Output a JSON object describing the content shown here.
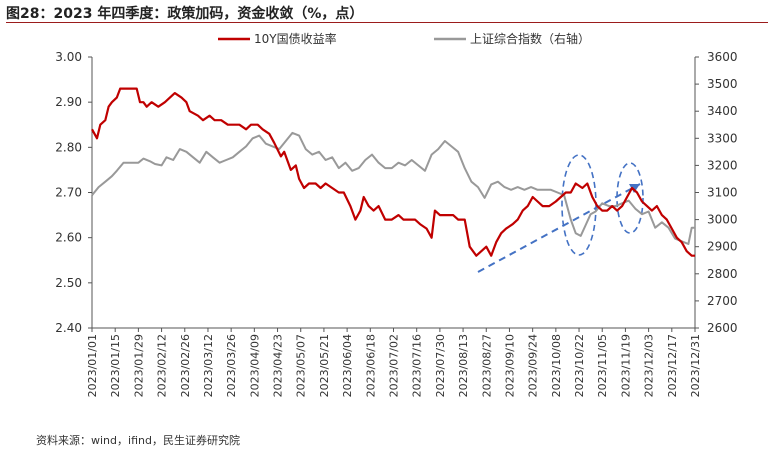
{
  "title": "图28：2023 年四季度：政策加码，资金收敛（%，点）",
  "source": "资料来源：wind，ifind，民生证券研究院",
  "chart_data": {
    "type": "line",
    "legend_placement": "top-center",
    "grid": false,
    "x_start": "2023/01/01",
    "x_end": "2023/12/31",
    "x_ticks": [
      "2023/01/01",
      "2023/01/15",
      "2023/01/29",
      "2023/02/12",
      "2023/02/26",
      "2023/03/12",
      "2023/03/26",
      "2023/04/09",
      "2023/04/23",
      "2023/05/07",
      "2023/05/21",
      "2023/06/04",
      "2023/06/18",
      "2023/07/02",
      "2023/07/16",
      "2023/07/30",
      "2023/08/13",
      "2023/08/27",
      "2023/09/10",
      "2023/09/24",
      "2023/10/08",
      "2023/10/22",
      "2023/11/05",
      "2023/11/19",
      "2023/12/03",
      "2023/12/17",
      "2023/12/31"
    ],
    "y_left": {
      "min": 2.4,
      "max": 3.0,
      "ticks": [
        "2.40",
        "2.50",
        "2.60",
        "2.70",
        "2.80",
        "2.90",
        "3.00"
      ]
    },
    "y_right": {
      "min": 2600,
      "max": 3600,
      "ticks": [
        "2600",
        "2700",
        "2800",
        "2900",
        "3000",
        "3100",
        "3200",
        "3300",
        "3400",
        "3500",
        "3600"
      ]
    },
    "series": [
      {
        "name": "10Y国债收益率",
        "axis": "left",
        "color": "#c00000",
        "points": [
          [
            "2023/01/01",
            2.84
          ],
          [
            "2023/01/04",
            2.82
          ],
          [
            "2023/01/06",
            2.85
          ],
          [
            "2023/01/09",
            2.86
          ],
          [
            "2023/01/11",
            2.89
          ],
          [
            "2023/01/13",
            2.9
          ],
          [
            "2023/01/16",
            2.91
          ],
          [
            "2023/01/18",
            2.93
          ],
          [
            "2023/01/28",
            2.93
          ],
          [
            "2023/01/30",
            2.9
          ],
          [
            "2023/02/01",
            2.9
          ],
          [
            "2023/02/03",
            2.89
          ],
          [
            "2023/02/06",
            2.9
          ],
          [
            "2023/02/10",
            2.89
          ],
          [
            "2023/02/14",
            2.9
          ],
          [
            "2023/02/17",
            2.91
          ],
          [
            "2023/02/20",
            2.92
          ],
          [
            "2023/02/24",
            2.91
          ],
          [
            "2023/02/27",
            2.9
          ],
          [
            "2023/03/01",
            2.88
          ],
          [
            "2023/03/06",
            2.87
          ],
          [
            "2023/03/09",
            2.86
          ],
          [
            "2023/03/13",
            2.87
          ],
          [
            "2023/03/16",
            2.86
          ],
          [
            "2023/03/20",
            2.86
          ],
          [
            "2023/03/24",
            2.85
          ],
          [
            "2023/03/28",
            2.85
          ],
          [
            "2023/03/31",
            2.85
          ],
          [
            "2023/04/04",
            2.84
          ],
          [
            "2023/04/07",
            2.85
          ],
          [
            "2023/04/11",
            2.85
          ],
          [
            "2023/04/14",
            2.84
          ],
          [
            "2023/04/18",
            2.83
          ],
          [
            "2023/04/21",
            2.81
          ],
          [
            "2023/04/25",
            2.78
          ],
          [
            "2023/04/27",
            2.79
          ],
          [
            "2023/05/01",
            2.75
          ],
          [
            "2023/05/04",
            2.76
          ],
          [
            "2023/05/06",
            2.73
          ],
          [
            "2023/05/09",
            2.71
          ],
          [
            "2023/05/12",
            2.72
          ],
          [
            "2023/05/16",
            2.72
          ],
          [
            "2023/05/19",
            2.71
          ],
          [
            "2023/05/22",
            2.72
          ],
          [
            "2023/05/26",
            2.71
          ],
          [
            "2023/05/30",
            2.7
          ],
          [
            "2023/06/02",
            2.7
          ],
          [
            "2023/06/06",
            2.67
          ],
          [
            "2023/06/09",
            2.64
          ],
          [
            "2023/06/12",
            2.66
          ],
          [
            "2023/06/14",
            2.69
          ],
          [
            "2023/06/17",
            2.67
          ],
          [
            "2023/06/20",
            2.66
          ],
          [
            "2023/06/23",
            2.67
          ],
          [
            "2023/06/27",
            2.64
          ],
          [
            "2023/07/01",
            2.64
          ],
          [
            "2023/07/05",
            2.65
          ],
          [
            "2023/07/08",
            2.64
          ],
          [
            "2023/07/12",
            2.64
          ],
          [
            "2023/07/15",
            2.64
          ],
          [
            "2023/07/18",
            2.63
          ],
          [
            "2023/07/22",
            2.62
          ],
          [
            "2023/07/25",
            2.6
          ],
          [
            "2023/07/27",
            2.66
          ],
          [
            "2023/07/30",
            2.65
          ],
          [
            "2023/08/03",
            2.65
          ],
          [
            "2023/08/07",
            2.65
          ],
          [
            "2023/08/10",
            2.64
          ],
          [
            "2023/08/14",
            2.64
          ],
          [
            "2023/08/17",
            2.58
          ],
          [
            "2023/08/21",
            2.56
          ],
          [
            "2023/08/24",
            2.57
          ],
          [
            "2023/08/27",
            2.58
          ],
          [
            "2023/08/30",
            2.56
          ],
          [
            "2023/09/02",
            2.59
          ],
          [
            "2023/09/05",
            2.61
          ],
          [
            "2023/09/08",
            2.62
          ],
          [
            "2023/09/12",
            2.63
          ],
          [
            "2023/09/15",
            2.64
          ],
          [
            "2023/09/18",
            2.66
          ],
          [
            "2023/09/21",
            2.67
          ],
          [
            "2023/09/24",
            2.69
          ],
          [
            "2023/09/27",
            2.68
          ],
          [
            "2023/09/30",
            2.67
          ],
          [
            "2023/10/04",
            2.67
          ],
          [
            "2023/10/08",
            2.68
          ],
          [
            "2023/10/11",
            2.69
          ],
          [
            "2023/10/14",
            2.7
          ],
          [
            "2023/10/17",
            2.7
          ],
          [
            "2023/10/20",
            2.72
          ],
          [
            "2023/10/24",
            2.71
          ],
          [
            "2023/10/27",
            2.72
          ],
          [
            "2023/10/30",
            2.69
          ],
          [
            "2023/11/02",
            2.67
          ],
          [
            "2023/11/05",
            2.66
          ],
          [
            "2023/11/08",
            2.66
          ],
          [
            "2023/11/11",
            2.67
          ],
          [
            "2023/11/14",
            2.66
          ],
          [
            "2023/11/17",
            2.67
          ],
          [
            "2023/11/20",
            2.69
          ],
          [
            "2023/11/23",
            2.71
          ],
          [
            "2023/11/26",
            2.7
          ],
          [
            "2023/11/29",
            2.68
          ],
          [
            "2023/12/02",
            2.67
          ],
          [
            "2023/12/05",
            2.66
          ],
          [
            "2023/12/08",
            2.67
          ],
          [
            "2023/12/11",
            2.65
          ],
          [
            "2023/12/14",
            2.64
          ],
          [
            "2023/12/17",
            2.62
          ],
          [
            "2023/12/20",
            2.6
          ],
          [
            "2023/12/23",
            2.59
          ],
          [
            "2023/12/26",
            2.57
          ],
          [
            "2023/12/29",
            2.56
          ],
          [
            "2023/12/31",
            2.56
          ]
        ]
      },
      {
        "name": "上证综合指数（右轴）",
        "axis": "right",
        "color": "#999999",
        "points": [
          [
            "2023/01/01",
            3090
          ],
          [
            "2023/01/05",
            3120
          ],
          [
            "2023/01/09",
            3140
          ],
          [
            "2023/01/13",
            3160
          ],
          [
            "2023/01/16",
            3180
          ],
          [
            "2023/01/20",
            3210
          ],
          [
            "2023/01/29",
            3210
          ],
          [
            "2023/02/01",
            3225
          ],
          [
            "2023/02/05",
            3215
          ],
          [
            "2023/02/08",
            3205
          ],
          [
            "2023/02/12",
            3200
          ],
          [
            "2023/02/15",
            3230
          ],
          [
            "2023/02/19",
            3220
          ],
          [
            "2023/02/23",
            3260
          ],
          [
            "2023/02/27",
            3250
          ],
          [
            "2023/03/03",
            3230
          ],
          [
            "2023/03/07",
            3210
          ],
          [
            "2023/03/11",
            3250
          ],
          [
            "2023/03/15",
            3230
          ],
          [
            "2023/03/19",
            3210
          ],
          [
            "2023/03/23",
            3220
          ],
          [
            "2023/03/27",
            3230
          ],
          [
            "2023/03/31",
            3250
          ],
          [
            "2023/04/04",
            3270
          ],
          [
            "2023/04/08",
            3300
          ],
          [
            "2023/04/12",
            3310
          ],
          [
            "2023/04/16",
            3280
          ],
          [
            "2023/04/20",
            3270
          ],
          [
            "2023/04/24",
            3260
          ],
          [
            "2023/04/28",
            3290
          ],
          [
            "2023/05/02",
            3320
          ],
          [
            "2023/05/06",
            3310
          ],
          [
            "2023/05/10",
            3260
          ],
          [
            "2023/05/14",
            3240
          ],
          [
            "2023/05/18",
            3250
          ],
          [
            "2023/05/22",
            3220
          ],
          [
            "2023/05/26",
            3230
          ],
          [
            "2023/05/30",
            3190
          ],
          [
            "2023/06/03",
            3210
          ],
          [
            "2023/06/07",
            3180
          ],
          [
            "2023/06/11",
            3190
          ],
          [
            "2023/06/15",
            3220
          ],
          [
            "2023/06/19",
            3240
          ],
          [
            "2023/06/23",
            3210
          ],
          [
            "2023/06/27",
            3190
          ],
          [
            "2023/07/01",
            3190
          ],
          [
            "2023/07/05",
            3210
          ],
          [
            "2023/07/09",
            3200
          ],
          [
            "2023/07/13",
            3220
          ],
          [
            "2023/07/17",
            3200
          ],
          [
            "2023/07/21",
            3180
          ],
          [
            "2023/07/25",
            3240
          ],
          [
            "2023/07/29",
            3260
          ],
          [
            "2023/08/02",
            3290
          ],
          [
            "2023/08/06",
            3270
          ],
          [
            "2023/08/10",
            3250
          ],
          [
            "2023/08/14",
            3190
          ],
          [
            "2023/08/18",
            3140
          ],
          [
            "2023/08/22",
            3120
          ],
          [
            "2023/08/26",
            3080
          ],
          [
            "2023/08/30",
            3130
          ],
          [
            "2023/09/03",
            3140
          ],
          [
            "2023/09/07",
            3120
          ],
          [
            "2023/09/11",
            3110
          ],
          [
            "2023/09/15",
            3120
          ],
          [
            "2023/09/19",
            3110
          ],
          [
            "2023/09/23",
            3120
          ],
          [
            "2023/09/27",
            3110
          ],
          [
            "2023/10/01",
            3110
          ],
          [
            "2023/10/05",
            3110
          ],
          [
            "2023/10/09",
            3100
          ],
          [
            "2023/10/13",
            3090
          ],
          [
            "2023/10/17",
            3000
          ],
          [
            "2023/10/20",
            2950
          ],
          [
            "2023/10/23",
            2940
          ],
          [
            "2023/10/26",
            2980
          ],
          [
            "2023/10/29",
            3020
          ],
          [
            "2023/11/01",
            3030
          ],
          [
            "2023/11/05",
            3060
          ],
          [
            "2023/11/09",
            3050
          ],
          [
            "2023/11/13",
            3050
          ],
          [
            "2023/11/17",
            3060
          ],
          [
            "2023/11/21",
            3070
          ],
          [
            "2023/11/25",
            3040
          ],
          [
            "2023/11/29",
            3020
          ],
          [
            "2023/12/03",
            3030
          ],
          [
            "2023/12/07",
            2970
          ],
          [
            "2023/12/11",
            2990
          ],
          [
            "2023/12/15",
            2970
          ],
          [
            "2023/12/19",
            2930
          ],
          [
            "2023/12/23",
            2920
          ],
          [
            "2023/12/27",
            2910
          ],
          [
            "2023/12/29",
            2970
          ],
          [
            "2023/12/31",
            2970
          ]
        ]
      }
    ]
  }
}
